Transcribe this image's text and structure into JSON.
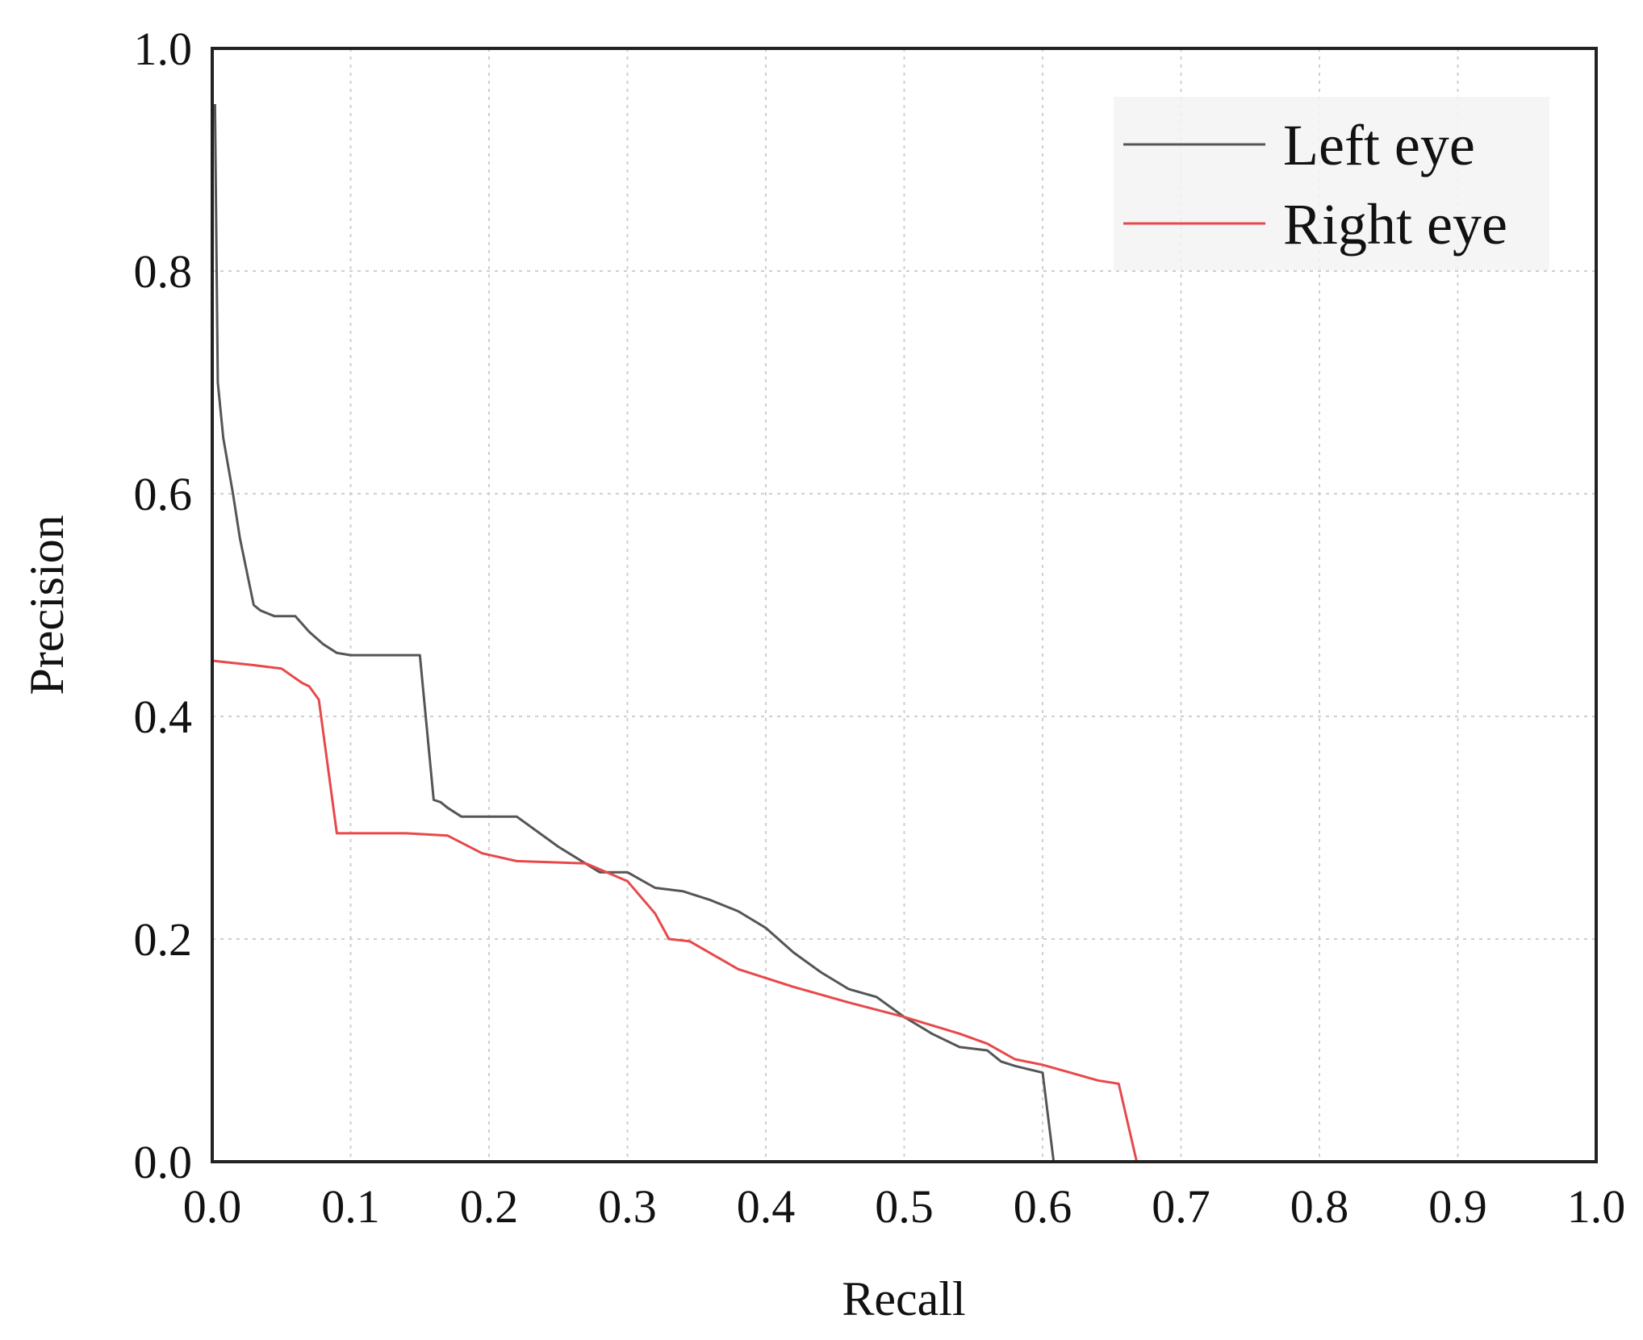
{
  "chart_data": {
    "type": "line",
    "title": "",
    "xlabel": "Recall",
    "ylabel": "Precision",
    "xlim": [
      0.0,
      1.0
    ],
    "ylim": [
      0.0,
      1.0
    ],
    "xticks": [
      "0.0",
      "0.1",
      "0.2",
      "0.3",
      "0.4",
      "0.5",
      "0.6",
      "0.7",
      "0.8",
      "0.9",
      "1.0"
    ],
    "yticks": [
      "0.0",
      "0.2",
      "0.4",
      "0.6",
      "0.8",
      "1.0"
    ],
    "grid": true,
    "legend_position": "top-right",
    "series": [
      {
        "name": "Left eye",
        "color": "#555555",
        "x": [
          0.002,
          0.004,
          0.008,
          0.015,
          0.02,
          0.03,
          0.035,
          0.045,
          0.06,
          0.07,
          0.08,
          0.09,
          0.1,
          0.11,
          0.15,
          0.16,
          0.165,
          0.17,
          0.18,
          0.19,
          0.2,
          0.22,
          0.25,
          0.28,
          0.3,
          0.32,
          0.34,
          0.36,
          0.37,
          0.38,
          0.4,
          0.42,
          0.44,
          0.46,
          0.48,
          0.5,
          0.52,
          0.54,
          0.56,
          0.57,
          0.58,
          0.6,
          0.608
        ],
        "y": [
          0.95,
          0.7,
          0.65,
          0.6,
          0.56,
          0.5,
          0.495,
          0.49,
          0.49,
          0.476,
          0.465,
          0.457,
          0.455,
          0.455,
          0.455,
          0.325,
          0.323,
          0.318,
          0.31,
          0.31,
          0.31,
          0.31,
          0.283,
          0.26,
          0.26,
          0.246,
          0.243,
          0.235,
          0.23,
          0.225,
          0.21,
          0.188,
          0.17,
          0.155,
          0.148,
          0.13,
          0.115,
          0.103,
          0.1,
          0.09,
          0.086,
          0.08,
          0.0
        ]
      },
      {
        "name": "Right eye",
        "color": "#e8484a",
        "x": [
          0.0,
          0.03,
          0.05,
          0.065,
          0.07,
          0.077,
          0.09,
          0.11,
          0.14,
          0.17,
          0.195,
          0.22,
          0.27,
          0.3,
          0.32,
          0.33,
          0.345,
          0.38,
          0.42,
          0.46,
          0.5,
          0.54,
          0.56,
          0.58,
          0.6,
          0.62,
          0.64,
          0.655,
          0.668
        ],
        "y": [
          0.45,
          0.446,
          0.443,
          0.43,
          0.427,
          0.415,
          0.295,
          0.295,
          0.295,
          0.293,
          0.277,
          0.27,
          0.268,
          0.252,
          0.223,
          0.2,
          0.198,
          0.173,
          0.157,
          0.143,
          0.13,
          0.115,
          0.106,
          0.092,
          0.087,
          0.08,
          0.073,
          0.07,
          0.0
        ]
      }
    ]
  }
}
